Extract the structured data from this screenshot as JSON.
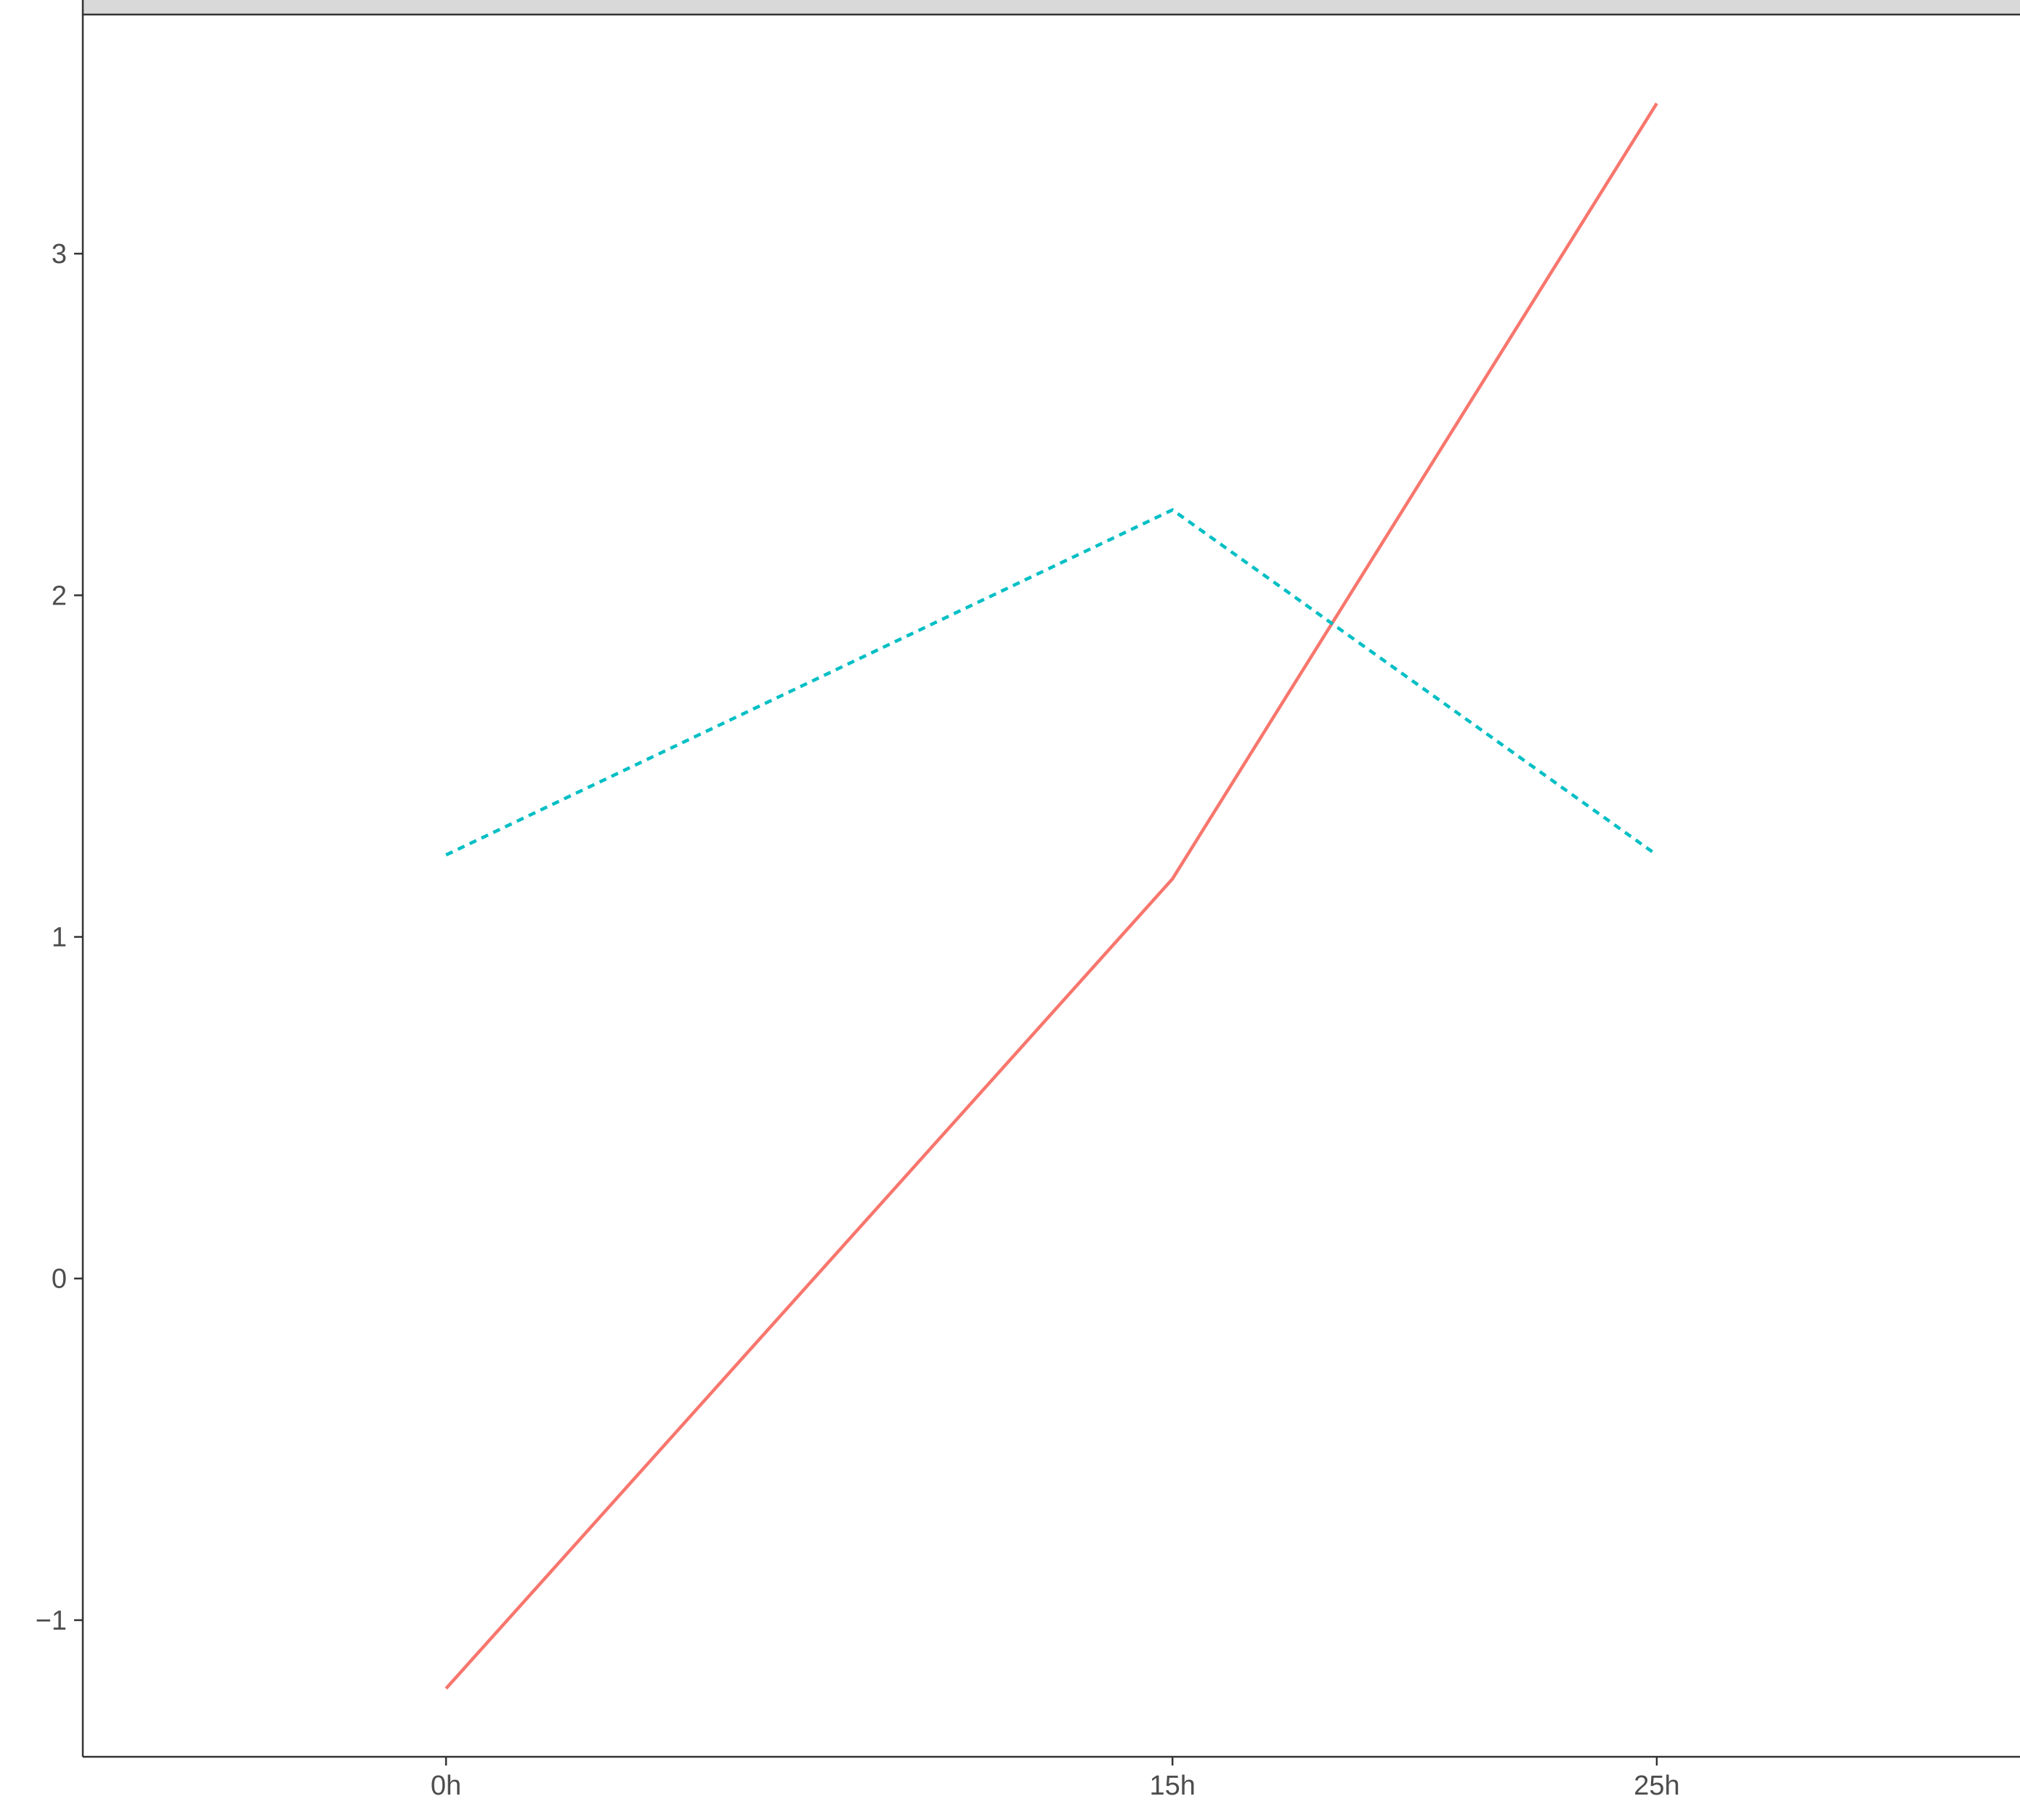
{
  "chart_data": {
    "type": "line",
    "title": "",
    "xlabel": "",
    "ylabel": "",
    "panel_strip": "",
    "x": [
      "0h",
      "15h",
      "25h"
    ],
    "x_positions": [
      0,
      15,
      25
    ],
    "xlim": [
      -7.5,
      32.5
    ],
    "ylim": [
      -1.4,
      3.7
    ],
    "y_ticks": [
      -1,
      0,
      1,
      2,
      3
    ],
    "grid": false,
    "legend": "none",
    "series": [
      {
        "values": [
          -1.2,
          1.17,
          3.44
        ],
        "color": "#F8766D",
        "linetype": "solid"
      },
      {
        "values": [
          1.24,
          2.25,
          1.24
        ],
        "color": "#00BFC4",
        "linetype": "dashed"
      }
    ]
  }
}
